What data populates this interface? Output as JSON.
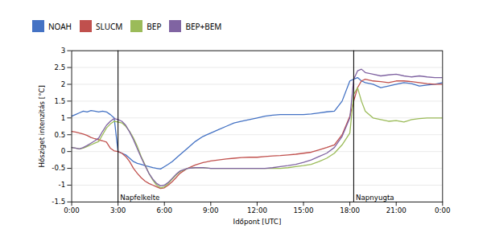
{
  "chart_data": {
    "type": "line",
    "title": "",
    "xlabel": "Időpont [UTC]",
    "ylabel": "Hősziget intenzitás [°C]",
    "xlim": [
      0,
      24
    ],
    "xticks": [
      {
        "value": 0,
        "label": "0:00"
      },
      {
        "value": 3,
        "label": "3:00"
      },
      {
        "value": 6,
        "label": "6:00"
      },
      {
        "value": 9,
        "label": "9:00"
      },
      {
        "value": 12,
        "label": "12:00"
      },
      {
        "value": 15,
        "label": "15:00"
      },
      {
        "value": 18,
        "label": "18:00"
      },
      {
        "value": 21,
        "label": "21:00"
      },
      {
        "value": 24,
        "label": "0:00"
      }
    ],
    "ylim": [
      -1.5,
      3.0
    ],
    "yticks": [
      -1.5,
      -1,
      -0.5,
      0,
      0.5,
      1,
      1.5,
      2,
      2.5,
      3
    ],
    "grid": "y",
    "legend": "top",
    "annotations": [
      {
        "x": 3.0,
        "text": "Napfelkelte",
        "line_style": "dashed"
      },
      {
        "x": 18.25,
        "text": "Napnyugta",
        "line_style": "dashed"
      }
    ],
    "x": [
      0.0,
      0.25,
      0.5,
      0.75,
      1.0,
      1.25,
      1.5,
      1.75,
      2.0,
      2.25,
      2.5,
      2.75,
      3.0,
      3.25,
      3.5,
      3.75,
      4.0,
      4.25,
      4.5,
      4.75,
      5.0,
      5.25,
      5.5,
      5.75,
      6.0,
      6.25,
      6.5,
      6.75,
      7.0,
      7.5,
      8.0,
      8.5,
      9.0,
      9.5,
      10.0,
      10.5,
      11.0,
      11.5,
      12.0,
      12.5,
      13.0,
      13.5,
      14.0,
      14.5,
      15.0,
      15.5,
      16.0,
      16.5,
      17.0,
      17.5,
      18.0,
      18.25,
      18.5,
      18.75,
      19.0,
      19.5,
      20.0,
      20.5,
      21.0,
      21.5,
      22.0,
      22.5,
      23.0,
      23.5,
      24.0
    ],
    "series": [
      {
        "name": "NOAH",
        "color": "#4472C4",
        "values": [
          1.05,
          1.1,
          1.15,
          1.2,
          1.18,
          1.22,
          1.2,
          1.18,
          1.2,
          1.18,
          1.1,
          1.0,
          0.0,
          -0.05,
          -0.1,
          -0.2,
          -0.3,
          -0.35,
          -0.38,
          -0.42,
          -0.45,
          -0.48,
          -0.5,
          -0.52,
          -0.45,
          -0.38,
          -0.3,
          -0.2,
          -0.1,
          0.1,
          0.3,
          0.45,
          0.55,
          0.65,
          0.75,
          0.85,
          0.9,
          0.95,
          1.0,
          1.05,
          1.08,
          1.1,
          1.1,
          1.1,
          1.1,
          1.12,
          1.15,
          1.18,
          1.2,
          1.5,
          2.1,
          2.15,
          2.2,
          2.1,
          2.05,
          2.0,
          1.9,
          1.95,
          2.0,
          2.05,
          2.02,
          1.95,
          1.98,
          2.0,
          2.05
        ]
      },
      {
        "name": "SLUCM",
        "color": "#C0504D",
        "values": [
          0.6,
          0.58,
          0.55,
          0.52,
          0.48,
          0.42,
          0.38,
          0.35,
          0.32,
          0.28,
          0.1,
          0.02,
          0.0,
          -0.05,
          -0.15,
          -0.3,
          -0.5,
          -0.65,
          -0.78,
          -0.88,
          -0.95,
          -1.0,
          -1.05,
          -1.1,
          -1.08,
          -1.0,
          -0.9,
          -0.78,
          -0.65,
          -0.5,
          -0.4,
          -0.33,
          -0.28,
          -0.25,
          -0.22,
          -0.2,
          -0.18,
          -0.17,
          -0.17,
          -0.15,
          -0.13,
          -0.12,
          -0.1,
          -0.08,
          -0.05,
          -0.02,
          0.05,
          0.12,
          0.2,
          0.5,
          1.05,
          1.5,
          1.9,
          2.1,
          2.15,
          2.1,
          2.08,
          2.05,
          2.1,
          2.1,
          2.08,
          2.05,
          2.02,
          2.0,
          2.0
        ]
      },
      {
        "name": "BEP",
        "color": "#9BBB59",
        "values": [
          0.12,
          0.1,
          0.08,
          0.1,
          0.15,
          0.2,
          0.25,
          0.3,
          0.5,
          0.7,
          0.82,
          0.9,
          0.88,
          0.85,
          0.75,
          0.6,
          0.4,
          0.15,
          -0.15,
          -0.4,
          -0.65,
          -0.85,
          -1.0,
          -1.08,
          -1.05,
          -0.95,
          -0.82,
          -0.7,
          -0.6,
          -0.5,
          -0.48,
          -0.48,
          -0.5,
          -0.5,
          -0.5,
          -0.5,
          -0.5,
          -0.5,
          -0.5,
          -0.5,
          -0.5,
          -0.5,
          -0.48,
          -0.45,
          -0.42,
          -0.38,
          -0.3,
          -0.2,
          -0.05,
          0.2,
          0.55,
          1.7,
          1.9,
          1.5,
          1.2,
          1.0,
          0.95,
          0.9,
          0.92,
          0.88,
          0.95,
          0.98,
          1.0,
          1.0,
          1.0
        ]
      },
      {
        "name": "BEP+BEM",
        "color": "#8064A2",
        "values": [
          0.12,
          0.1,
          0.08,
          0.12,
          0.18,
          0.25,
          0.32,
          0.4,
          0.6,
          0.78,
          0.9,
          0.98,
          0.95,
          0.9,
          0.78,
          0.58,
          0.35,
          0.08,
          -0.18,
          -0.42,
          -0.65,
          -0.82,
          -0.95,
          -1.02,
          -1.0,
          -0.92,
          -0.8,
          -0.68,
          -0.58,
          -0.5,
          -0.48,
          -0.48,
          -0.5,
          -0.5,
          -0.5,
          -0.5,
          -0.5,
          -0.5,
          -0.5,
          -0.5,
          -0.48,
          -0.45,
          -0.42,
          -0.38,
          -0.32,
          -0.25,
          -0.15,
          -0.05,
          0.12,
          0.45,
          1.0,
          2.15,
          2.4,
          2.45,
          2.35,
          2.3,
          2.25,
          2.28,
          2.3,
          2.25,
          2.22,
          2.25,
          2.22,
          2.2,
          2.2
        ]
      }
    ]
  }
}
